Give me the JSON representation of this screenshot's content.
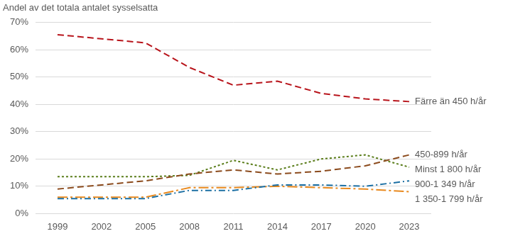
{
  "chart_data": {
    "type": "line",
    "y_label": "Andel av det totala antalet sysselsatta",
    "categories": [
      "1999",
      "2002",
      "2005",
      "2008",
      "2011",
      "2014",
      "2017",
      "2020",
      "2023"
    ],
    "series": [
      {
        "name": "Färre än 450 h/år",
        "color": "#b8141b",
        "line_style": "dashed",
        "values": [
          65.5,
          64,
          62.5,
          53.5,
          47,
          48.5,
          44,
          42,
          41
        ]
      },
      {
        "name": "450-899 h/år",
        "color": "#8b4a1c",
        "line_style": "dashed",
        "values": [
          9,
          10.5,
          12,
          14.5,
          16,
          14.5,
          15.5,
          17.5,
          21.5
        ]
      },
      {
        "name": "Minst 1 800 h/år",
        "color": "#5a7d1a",
        "line_style": "dotted",
        "values": [
          13.5,
          13.5,
          13.5,
          14,
          19.5,
          16,
          20,
          21.5,
          17
        ]
      },
      {
        "name": "900-1 349 h/år",
        "color": "#1b6fa3",
        "line_style": "dashdot",
        "values": [
          5.5,
          5.5,
          5.5,
          8.5,
          8.5,
          10.5,
          10.5,
          10,
          12
        ]
      },
      {
        "name": "1 350-1 799 h/år",
        "color": "#e8891e",
        "line_style": "longdashdot",
        "values": [
          6,
          6,
          6,
          9.5,
          9.5,
          10,
          9.5,
          9,
          8
        ]
      }
    ],
    "ylim": [
      0,
      70
    ],
    "yticks": [
      {
        "value": 0,
        "label": "0%"
      },
      {
        "value": 10,
        "label": "10%"
      },
      {
        "value": 20,
        "label": "20%"
      },
      {
        "value": 30,
        "label": "30%"
      },
      {
        "value": 40,
        "label": "40%"
      },
      {
        "value": 50,
        "label": "50%"
      },
      {
        "value": 60,
        "label": "60%"
      },
      {
        "value": 70,
        "label": "70%"
      }
    ],
    "grid": true
  }
}
